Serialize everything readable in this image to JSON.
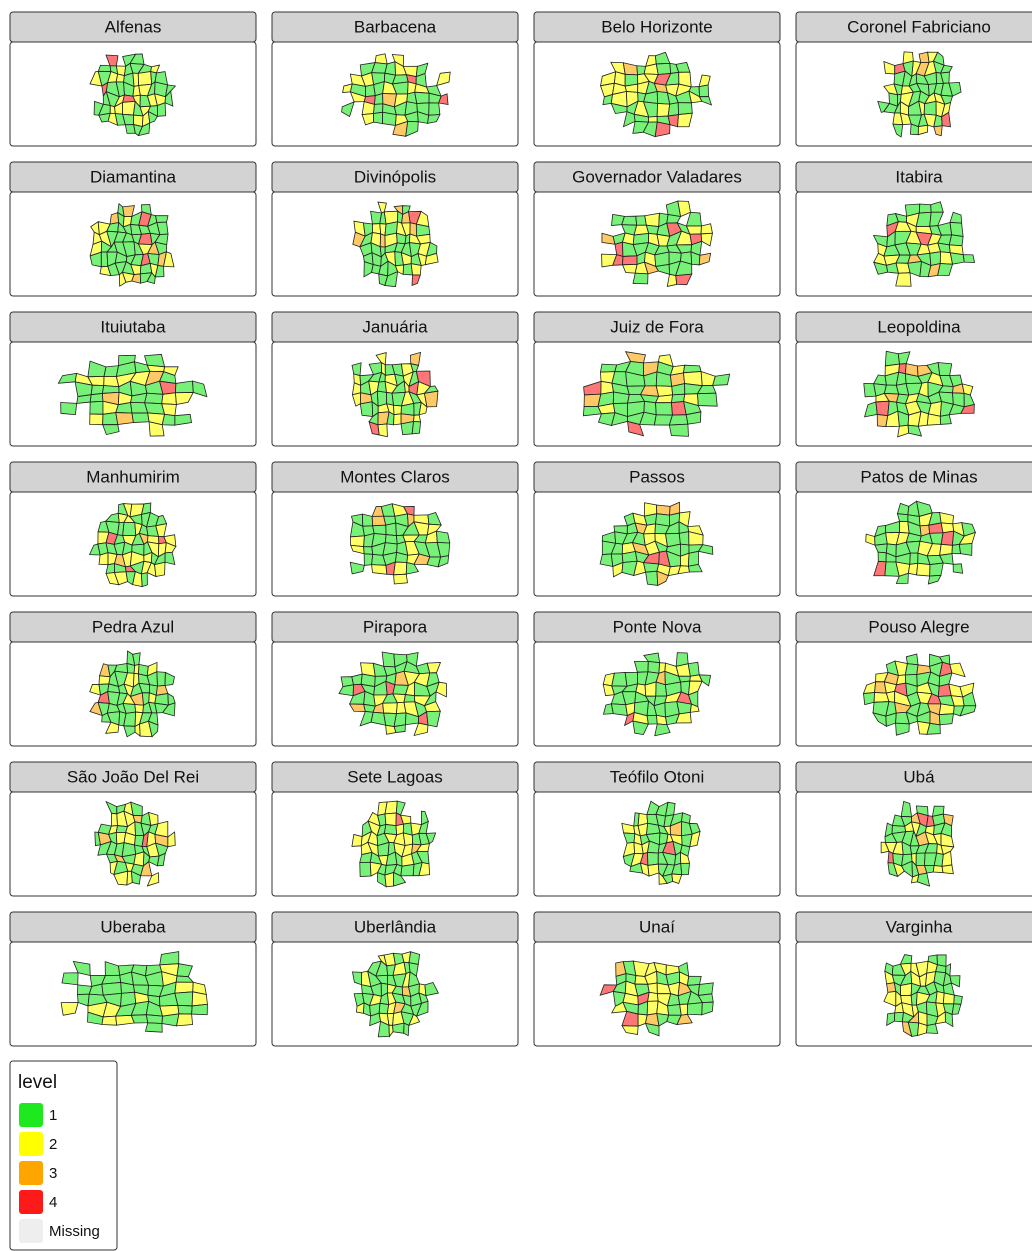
{
  "panels": [
    {
      "title": "Alfenas"
    },
    {
      "title": "Barbacena"
    },
    {
      "title": "Belo Horizonte"
    },
    {
      "title": "Coronel Fabriciano"
    },
    {
      "title": "Diamantina"
    },
    {
      "title": "Divinópolis"
    },
    {
      "title": "Governador Valadares"
    },
    {
      "title": "Itabira"
    },
    {
      "title": "Ituiutaba"
    },
    {
      "title": "Januária"
    },
    {
      "title": "Juiz de Fora"
    },
    {
      "title": "Leopoldina"
    },
    {
      "title": "Manhumirim"
    },
    {
      "title": "Montes Claros"
    },
    {
      "title": "Passos"
    },
    {
      "title": "Patos de Minas"
    },
    {
      "title": "Pedra Azul"
    },
    {
      "title": "Pirapora"
    },
    {
      "title": "Ponte Nova"
    },
    {
      "title": "Pouso Alegre"
    },
    {
      "title": "São João Del Rei"
    },
    {
      "title": "Sete Lagoas"
    },
    {
      "title": "Teófilo Otoni"
    },
    {
      "title": "Ubá"
    },
    {
      "title": "Uberaba"
    },
    {
      "title": "Uberlândia"
    },
    {
      "title": "Unaí"
    },
    {
      "title": "Varginha"
    }
  ],
  "legend": {
    "title": "level",
    "items": [
      {
        "label": "1",
        "color": "#1ee81e"
      },
      {
        "label": "2",
        "color": "#ffff00"
      },
      {
        "label": "3",
        "color": "#ffa500"
      },
      {
        "label": "4",
        "color": "#ff1a1a"
      },
      {
        "label": "Missing",
        "color": "#eeeeee"
      }
    ]
  }
}
